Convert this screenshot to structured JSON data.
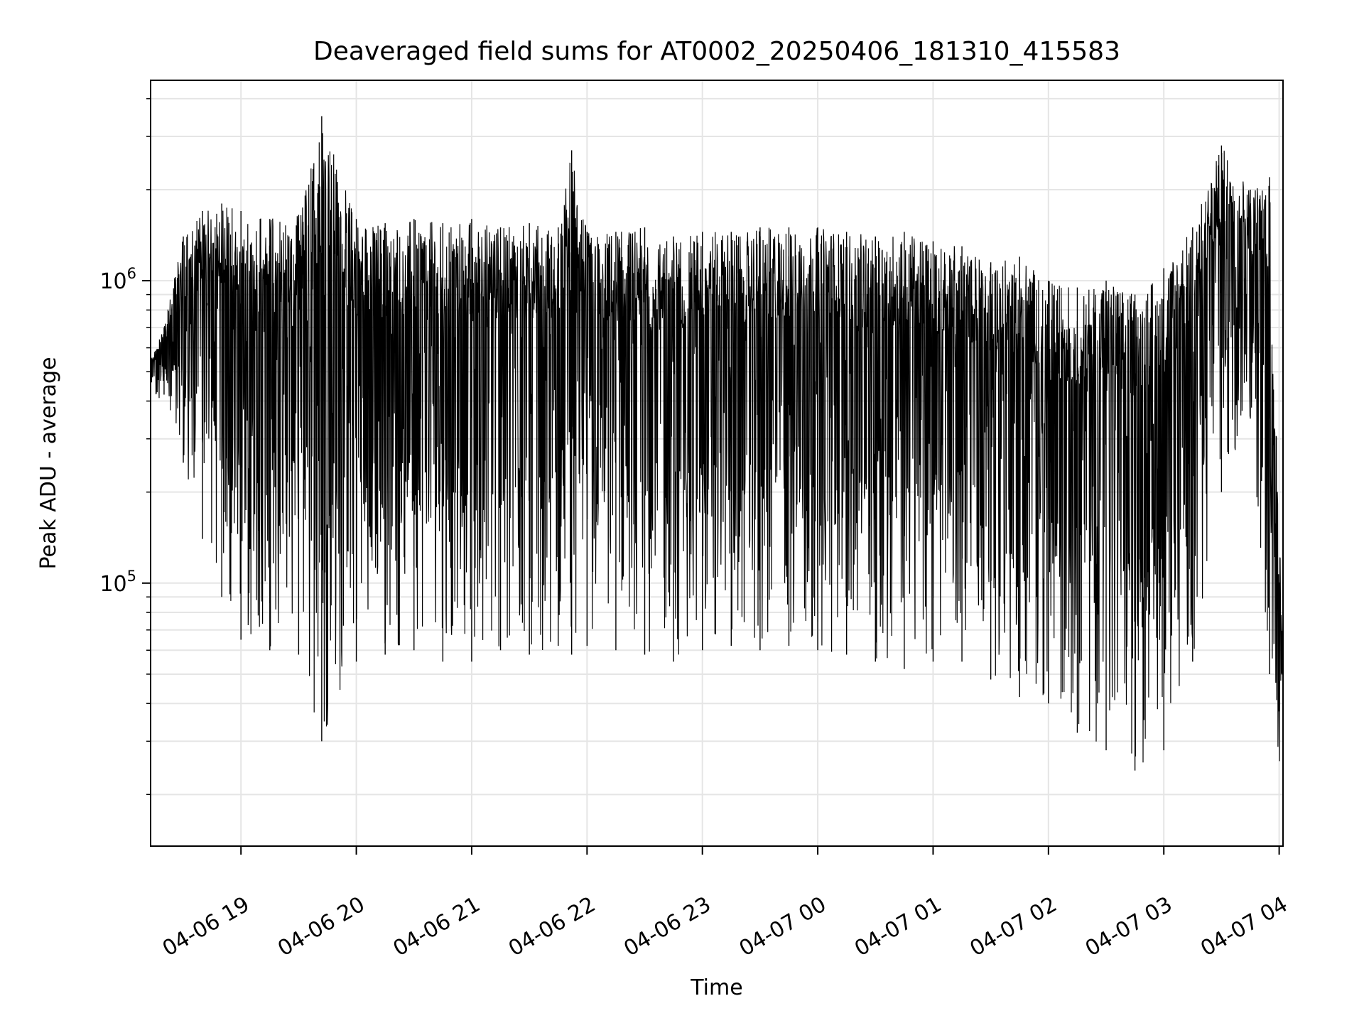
{
  "chart_data": {
    "type": "line",
    "title": "Deaveraged field sums for AT0002_20250406_181310_415583",
    "xlabel": "Time",
    "ylabel": "Peak ADU - average",
    "x_axis_type": "datetime",
    "xlim": [
      "2025-04-06 18:13",
      "2025-04-07 04:02"
    ],
    "y_scale": "log",
    "ylim": [
      13500,
      4600000
    ],
    "x_ticks": [
      {
        "label": "04-06 19",
        "t": "2025-04-06 19:00"
      },
      {
        "label": "04-06 20",
        "t": "2025-04-06 20:00"
      },
      {
        "label": "04-06 21",
        "t": "2025-04-06 21:00"
      },
      {
        "label": "04-06 22",
        "t": "2025-04-06 22:00"
      },
      {
        "label": "04-06 23",
        "t": "2025-04-06 23:00"
      },
      {
        "label": "04-07 00",
        "t": "2025-04-07 00:00"
      },
      {
        "label": "04-07 01",
        "t": "2025-04-07 01:00"
      },
      {
        "label": "04-07 02",
        "t": "2025-04-07 02:00"
      },
      {
        "label": "04-07 03",
        "t": "2025-04-07 03:00"
      },
      {
        "label": "04-07 04",
        "t": "2025-04-07 04:00"
      }
    ],
    "y_ticks": [
      {
        "base": "10",
        "exp": "5",
        "value": 100000
      },
      {
        "base": "10",
        "exp": "6",
        "value": 1000000
      }
    ],
    "grid": true,
    "line_color": "#000000",
    "grid_color": "#e5e5e5",
    "series": [
      {
        "x": [
          "2025-04-06 18:13",
          "2025-04-06 18:20",
          "2025-04-06 18:30",
          "2025-04-06 18:40",
          "2025-04-06 18:50",
          "2025-04-06 19:00",
          "2025-04-06 19:15",
          "2025-04-06 19:30",
          "2025-04-06 19:42",
          "2025-04-06 20:00",
          "2025-04-06 20:15",
          "2025-04-06 20:30",
          "2025-04-06 20:45",
          "2025-04-06 21:00",
          "2025-04-06 21:15",
          "2025-04-06 21:30",
          "2025-04-06 21:45",
          "2025-04-06 21:52",
          "2025-04-06 22:00",
          "2025-04-06 22:15",
          "2025-04-06 22:30",
          "2025-04-06 22:45",
          "2025-04-06 23:00",
          "2025-04-06 23:15",
          "2025-04-06 23:30",
          "2025-04-06 23:45",
          "2025-04-07 00:00",
          "2025-04-07 00:15",
          "2025-04-07 00:30",
          "2025-04-07 00:45",
          "2025-04-07 01:00",
          "2025-04-07 01:15",
          "2025-04-07 01:30",
          "2025-04-07 01:45",
          "2025-04-07 02:00",
          "2025-04-07 02:15",
          "2025-04-07 02:30",
          "2025-04-07 02:45",
          "2025-04-07 03:00",
          "2025-04-07 03:15",
          "2025-04-07 03:30",
          "2025-04-07 03:45",
          "2025-04-07 03:55",
          "2025-04-07 04:02"
        ],
        "high": [
          550000,
          700000,
          1400000,
          1700000,
          1800000,
          1700000,
          1600000,
          1650000,
          3500000,
          1600000,
          1550000,
          1600000,
          1550000,
          1600000,
          1500000,
          1550000,
          1500000,
          2700000,
          1450000,
          1450000,
          1500000,
          1400000,
          1450000,
          1450000,
          1500000,
          1500000,
          1500000,
          1450000,
          1400000,
          1450000,
          1350000,
          1300000,
          1150000,
          1200000,
          1000000,
          950000,
          1000000,
          900000,
          1100000,
          1500000,
          2800000,
          2000000,
          2200000,
          60000
        ],
        "low": [
          380000,
          420000,
          250000,
          140000,
          90000,
          65000,
          60000,
          58000,
          30000,
          55000,
          58000,
          60000,
          55000,
          55000,
          60000,
          58000,
          62000,
          58000,
          62000,
          60000,
          58000,
          55000,
          60000,
          62000,
          60000,
          62000,
          60000,
          58000,
          55000,
          52000,
          55000,
          55000,
          48000,
          42000,
          40000,
          32000,
          28000,
          24000,
          28000,
          55000,
          200000,
          350000,
          50000,
          20000
        ]
      }
    ]
  }
}
